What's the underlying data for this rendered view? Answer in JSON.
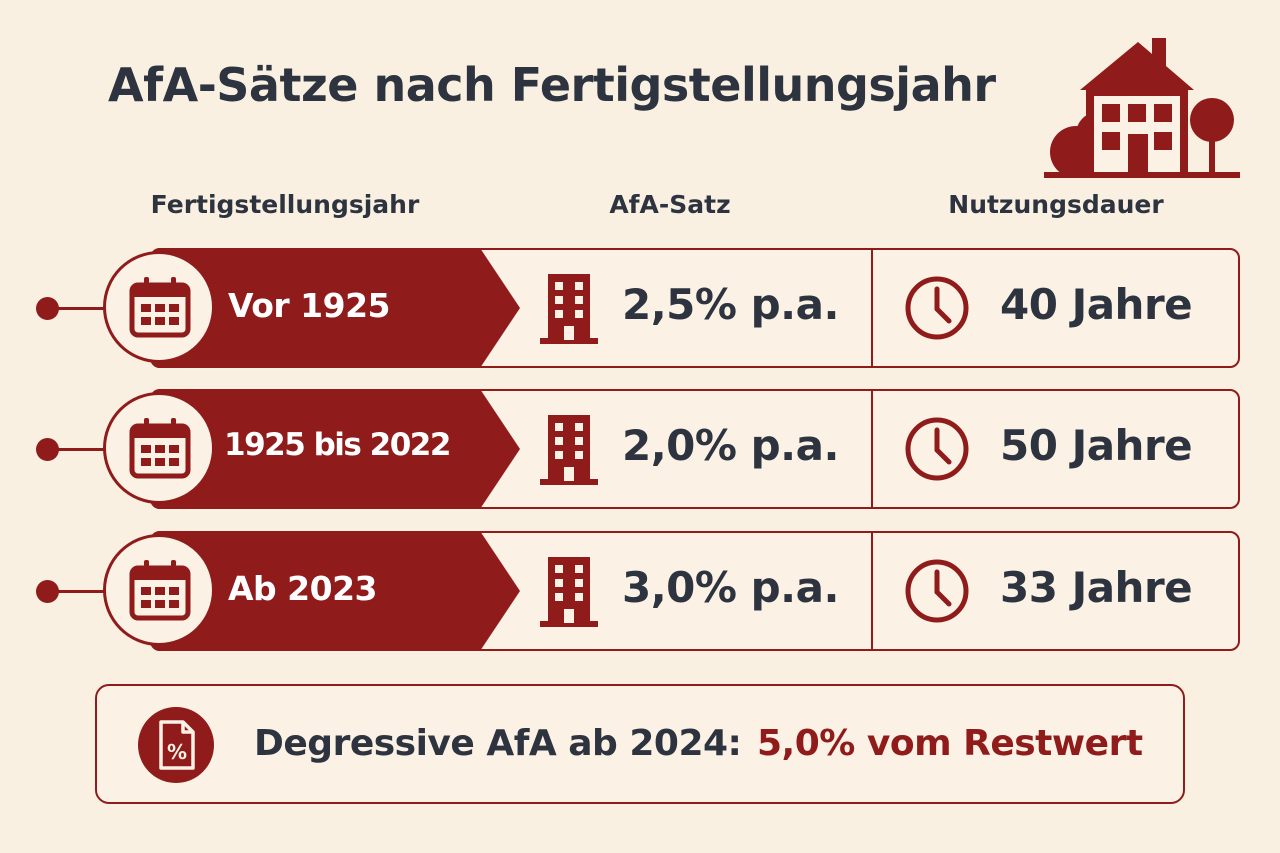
{
  "title": "AfA-Sätze nach Fertigstellungsjahr",
  "columns": {
    "year": "Fertigstellungsjahr",
    "rate": "AfA-Satz",
    "duration": "Nutzungsdauer"
  },
  "rows": [
    {
      "year": "Vor 1925",
      "rate": "2,5% p.a.",
      "duration": "40 Jahre"
    },
    {
      "year": "1925 bis 2022",
      "rate": "2,0% p.a.",
      "duration": "50 Jahre"
    },
    {
      "year": "Ab 2023",
      "rate": "3,0% p.a.",
      "duration": "33 Jahre"
    }
  ],
  "note": {
    "label": "Degressive AfA ab 2024:",
    "value": "5,0% vom Restwert"
  },
  "colors": {
    "accent": "#8f1b1b",
    "background": "#faf0e2",
    "text": "#2d3440"
  },
  "icons": [
    "house-icon",
    "calendar-icon",
    "building-icon",
    "clock-icon",
    "percent-document-icon"
  ]
}
